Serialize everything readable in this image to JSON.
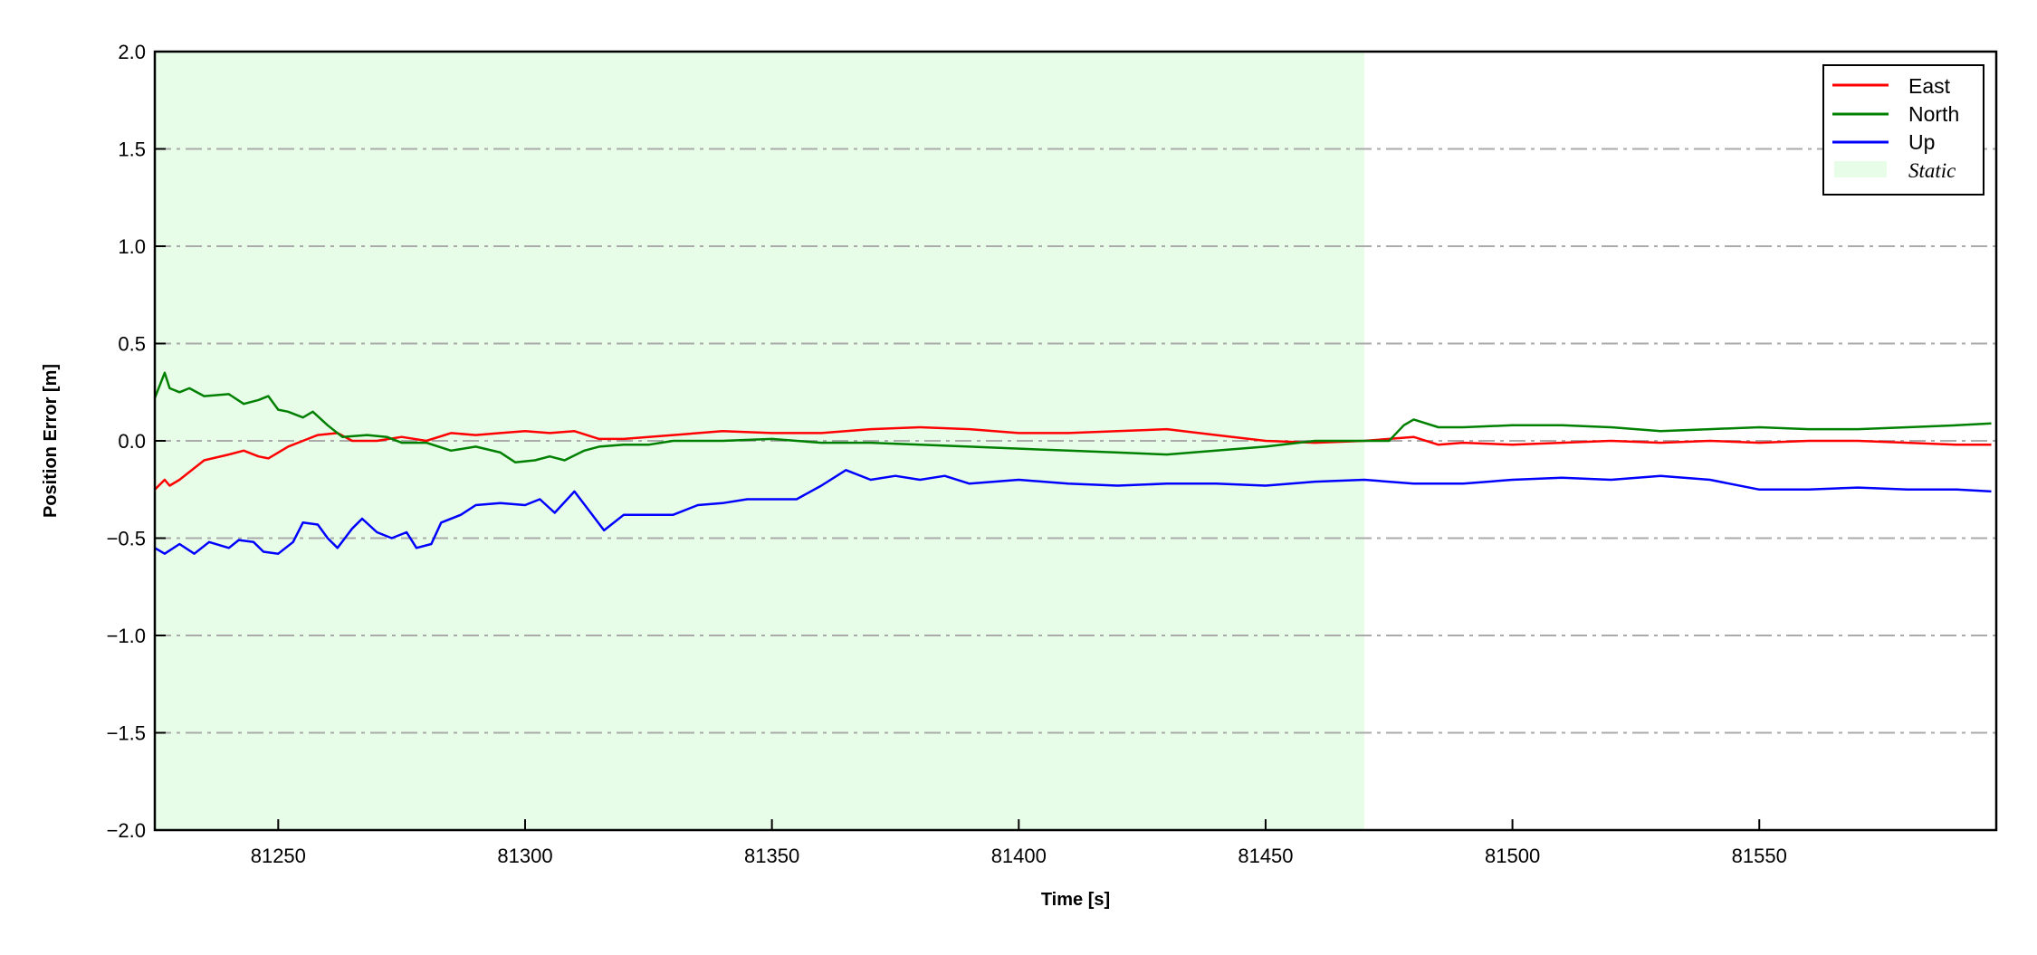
{
  "chart_data": {
    "type": "line",
    "xlabel": "Time [s]",
    "ylabel": "Position Error [m]",
    "xlim": [
      81225,
      81598
    ],
    "ylim": [
      -2.0,
      2.0
    ],
    "xticks": [
      "81250",
      "81300",
      "81350",
      "81400",
      "81450",
      "81500",
      "81550"
    ],
    "xtick_values": [
      81250,
      81300,
      81350,
      81400,
      81450,
      81500,
      81550
    ],
    "yticks": [
      "2.0",
      "1.5",
      "1.0",
      "0.5",
      "0.0",
      "−0.5",
      "−1.0",
      "−1.5",
      "−2.0"
    ],
    "ytick_values": [
      2.0,
      1.5,
      1.0,
      0.5,
      0.0,
      -0.5,
      -1.0,
      -1.5,
      -2.0
    ],
    "grid": "horizontal dash-dot",
    "legend_position": "top-right",
    "shaded_region": {
      "name": "Static",
      "x": [
        81225,
        81470
      ],
      "color": "#e8fde8"
    },
    "series": [
      {
        "name": "East",
        "color": "#ff0000",
        "x": [
          81225,
          81227,
          81228,
          81230,
          81235,
          81240,
          81243,
          81246,
          81248,
          81252,
          81255,
          81258,
          81262,
          81265,
          81270,
          81275,
          81280,
          81285,
          81290,
          81295,
          81300,
          81305,
          81310,
          81315,
          81320,
          81330,
          81340,
          81350,
          81360,
          81370,
          81380,
          81390,
          81400,
          81410,
          81420,
          81430,
          81440,
          81450,
          81460,
          81470,
          81480,
          81485,
          81490,
          81500,
          81510,
          81520,
          81530,
          81540,
          81550,
          81560,
          81570,
          81580,
          81590,
          81597
        ],
        "y": [
          -0.25,
          -0.2,
          -0.23,
          -0.2,
          -0.1,
          -0.07,
          -0.05,
          -0.08,
          -0.09,
          -0.03,
          0.0,
          0.03,
          0.04,
          0.0,
          0.0,
          0.02,
          0.0,
          0.04,
          0.03,
          0.04,
          0.05,
          0.04,
          0.05,
          0.01,
          0.01,
          0.03,
          0.05,
          0.04,
          0.04,
          0.06,
          0.07,
          0.06,
          0.04,
          0.04,
          0.05,
          0.06,
          0.03,
          0.0,
          -0.01,
          0.0,
          0.02,
          -0.02,
          -0.01,
          -0.02,
          -0.01,
          0.0,
          -0.01,
          0.0,
          -0.01,
          0.0,
          0.0,
          -0.01,
          -0.02,
          -0.02
        ]
      },
      {
        "name": "North",
        "color": "#008000",
        "x": [
          81225,
          81227,
          81228,
          81230,
          81232,
          81235,
          81240,
          81243,
          81246,
          81248,
          81250,
          81252,
          81255,
          81257,
          81260,
          81263,
          81268,
          81272,
          81275,
          81280,
          81285,
          81290,
          81295,
          81298,
          81302,
          81305,
          81308,
          81312,
          81315,
          81320,
          81325,
          81330,
          81340,
          81350,
          81355,
          81360,
          81370,
          81380,
          81390,
          81400,
          81410,
          81420,
          81430,
          81440,
          81450,
          81460,
          81470,
          81475,
          81478,
          81480,
          81485,
          81490,
          81500,
          81510,
          81520,
          81530,
          81540,
          81550,
          81560,
          81570,
          81580,
          81590,
          81597
        ],
        "y": [
          0.22,
          0.35,
          0.27,
          0.25,
          0.27,
          0.23,
          0.24,
          0.19,
          0.21,
          0.23,
          0.16,
          0.15,
          0.12,
          0.15,
          0.08,
          0.02,
          0.03,
          0.02,
          -0.01,
          -0.01,
          -0.05,
          -0.03,
          -0.06,
          -0.11,
          -0.1,
          -0.08,
          -0.1,
          -0.05,
          -0.03,
          -0.02,
          -0.02,
          0.0,
          0.0,
          0.01,
          0.0,
          -0.01,
          -0.01,
          -0.02,
          -0.03,
          -0.04,
          -0.05,
          -0.06,
          -0.07,
          -0.05,
          -0.03,
          0.0,
          0.0,
          0.0,
          0.08,
          0.11,
          0.07,
          0.07,
          0.08,
          0.08,
          0.07,
          0.05,
          0.06,
          0.07,
          0.06,
          0.06,
          0.07,
          0.08,
          0.09
        ]
      },
      {
        "name": "Up",
        "color": "#0000ff",
        "x": [
          81225,
          81227,
          81230,
          81233,
          81236,
          81240,
          81242,
          81245,
          81247,
          81250,
          81253,
          81255,
          81258,
          81260,
          81262,
          81265,
          81267,
          81270,
          81273,
          81276,
          81278,
          81281,
          81283,
          81287,
          81290,
          81295,
          81300,
          81303,
          81306,
          81310,
          81313,
          81316,
          81320,
          81325,
          81330,
          81335,
          81340,
          81345,
          81350,
          81355,
          81360,
          81365,
          81370,
          81375,
          81380,
          81385,
          81390,
          81400,
          81410,
          81420,
          81430,
          81440,
          81450,
          81460,
          81470,
          81480,
          81490,
          81500,
          81510,
          81520,
          81530,
          81540,
          81550,
          81560,
          81570,
          81580,
          81590,
          81597
        ],
        "y": [
          -0.55,
          -0.58,
          -0.53,
          -0.58,
          -0.52,
          -0.55,
          -0.51,
          -0.52,
          -0.57,
          -0.58,
          -0.52,
          -0.42,
          -0.43,
          -0.5,
          -0.55,
          -0.45,
          -0.4,
          -0.47,
          -0.5,
          -0.47,
          -0.55,
          -0.53,
          -0.42,
          -0.38,
          -0.33,
          -0.32,
          -0.33,
          -0.3,
          -0.37,
          -0.26,
          -0.36,
          -0.46,
          -0.38,
          -0.38,
          -0.38,
          -0.33,
          -0.32,
          -0.3,
          -0.3,
          -0.3,
          -0.23,
          -0.15,
          -0.2,
          -0.18,
          -0.2,
          -0.18,
          -0.22,
          -0.2,
          -0.22,
          -0.23,
          -0.22,
          -0.22,
          -0.23,
          -0.21,
          -0.2,
          -0.22,
          -0.22,
          -0.2,
          -0.19,
          -0.2,
          -0.18,
          -0.2,
          -0.25,
          -0.25,
          -0.24,
          -0.25,
          -0.25,
          -0.26
        ]
      }
    ],
    "legend": [
      "East",
      "North",
      "Up",
      "Static"
    ]
  }
}
